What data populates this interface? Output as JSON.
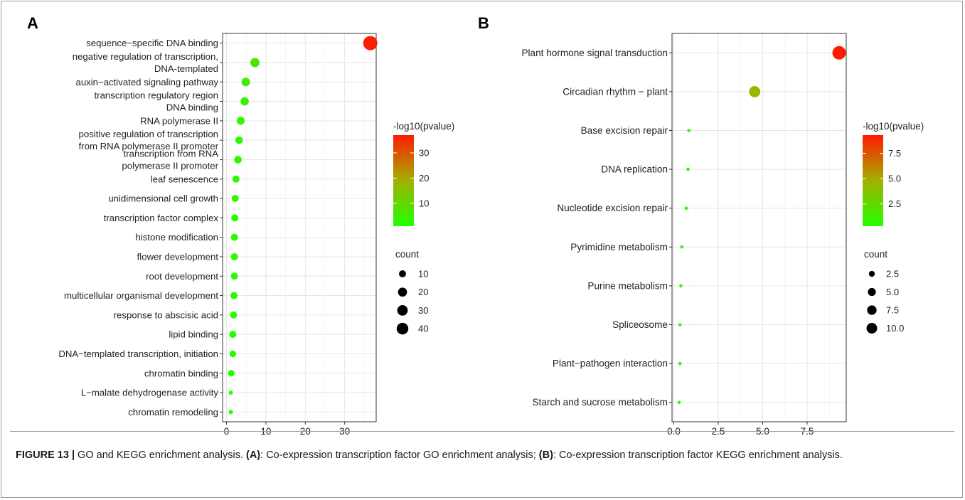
{
  "figure": {
    "caption_label": "FIGURE 13 |",
    "caption_intro": " GO and KEGG enrichment analysis. ",
    "caption_ref_a": "(A)",
    "caption_part_a": ": Co-expression transcription factor GO enrichment analysis; ",
    "caption_ref_b": "(B)",
    "caption_part_b": ": Co-expression transcription factor KEGG enrichment analysis."
  },
  "chart_data": [
    {
      "type": "scatter",
      "panel_label": "A",
      "xlim": [
        -1,
        38
      ],
      "xticks": [
        "0",
        "10",
        "20",
        "30"
      ],
      "xtick_values": [
        0,
        10,
        20,
        30
      ],
      "grid": true,
      "size_var": "count",
      "color_var": "-log10(pvalue)",
      "categories": [
        "sequence−specific DNA binding",
        "negative regulation of transcription,\nDNA-templated",
        "auxin−activated signaling pathway",
        "transcription regulatory region\nDNA binding",
        "RNA polymerase II",
        "positive regulation of transcription\nfrom RNA polymerase II promoter",
        "transcription from RNA\npolymerase II promoter",
        "leaf senescence",
        "unidimensional cell growth",
        "transcription factor complex",
        "histone modification",
        "flower development",
        "root development",
        "multicellular organismal development",
        "response to abscisic acid",
        "lipid binding",
        "DNA−templated transcription, initiation",
        "chromatin binding",
        "L−malate dehydrogenase activity",
        "chromatin remodeling"
      ],
      "x": [
        36.5,
        7.2,
        4.9,
        4.6,
        3.6,
        3.2,
        2.9,
        2.4,
        2.2,
        2.1,
        2.0,
        2.0,
        2.0,
        1.9,
        1.8,
        1.6,
        1.6,
        1.2,
        1.1,
        1.1
      ],
      "count": [
        40,
        12,
        10,
        9,
        8,
        7,
        7,
        6,
        6,
        6,
        6,
        6,
        6,
        6,
        6,
        6,
        5,
        5,
        3,
        3
      ],
      "color_value": [
        36.5,
        7.2,
        4.9,
        4.6,
        3.6,
        3.2,
        2.9,
        2.4,
        2.2,
        2.1,
        2.0,
        2.0,
        2.0,
        1.9,
        1.8,
        1.6,
        1.6,
        1.2,
        1.1,
        1.1
      ],
      "color_range": [
        1,
        37
      ],
      "colorbar_ticks": [
        10,
        20,
        30
      ],
      "colorbar_tick_labels": [
        "10",
        "20",
        "30"
      ],
      "size_legend_values": [
        10,
        20,
        30,
        40
      ],
      "size_legend_labels": [
        "10",
        "20",
        "30",
        "40"
      ],
      "size_range": [
        3,
        40
      ],
      "colors": {
        "low": "#22ff00",
        "mid": "#a2b000",
        "high": "#ff1a00"
      }
    },
    {
      "type": "scatter",
      "panel_label": "B",
      "xlim": [
        -0.1,
        9.7
      ],
      "xticks": [
        "0.0",
        "2.5",
        "5.0",
        "7.5"
      ],
      "xtick_values": [
        0,
        2.5,
        5,
        7.5
      ],
      "grid": true,
      "size_var": "count",
      "color_var": "-log10(pvalue)",
      "categories": [
        "Plant hormone signal transduction",
        "Circadian rhythm − plant",
        "Base excision repair",
        "DNA replication",
        "Nucleotide excision repair",
        "Pyrimidine metabolism",
        "Purine metabolism",
        "Spliceosome",
        "Plant−pathogen interaction",
        "Starch and sucrose metabolism"
      ],
      "x": [
        9.3,
        4.55,
        0.85,
        0.8,
        0.7,
        0.45,
        0.4,
        0.35,
        0.35,
        0.3
      ],
      "count": [
        11,
        7,
        1,
        1,
        1,
        1,
        1,
        1,
        1,
        1
      ],
      "color_value": [
        9.3,
        4.55,
        0.85,
        0.8,
        0.7,
        0.45,
        0.4,
        0.35,
        0.35,
        0.3
      ],
      "color_range": [
        0.3,
        9.3
      ],
      "colorbar_ticks": [
        2.5,
        5.0,
        7.5
      ],
      "colorbar_tick_labels": [
        "2.5",
        "5.0",
        "7.5"
      ],
      "size_legend_values": [
        2.5,
        5.0,
        7.5,
        10.0
      ],
      "size_legend_labels": [
        "2.5",
        "5.0",
        "7.5",
        "10.0"
      ],
      "size_range": [
        1,
        11
      ],
      "colors": {
        "low": "#22ff00",
        "mid": "#a2b000",
        "high": "#ff1a00"
      }
    }
  ]
}
